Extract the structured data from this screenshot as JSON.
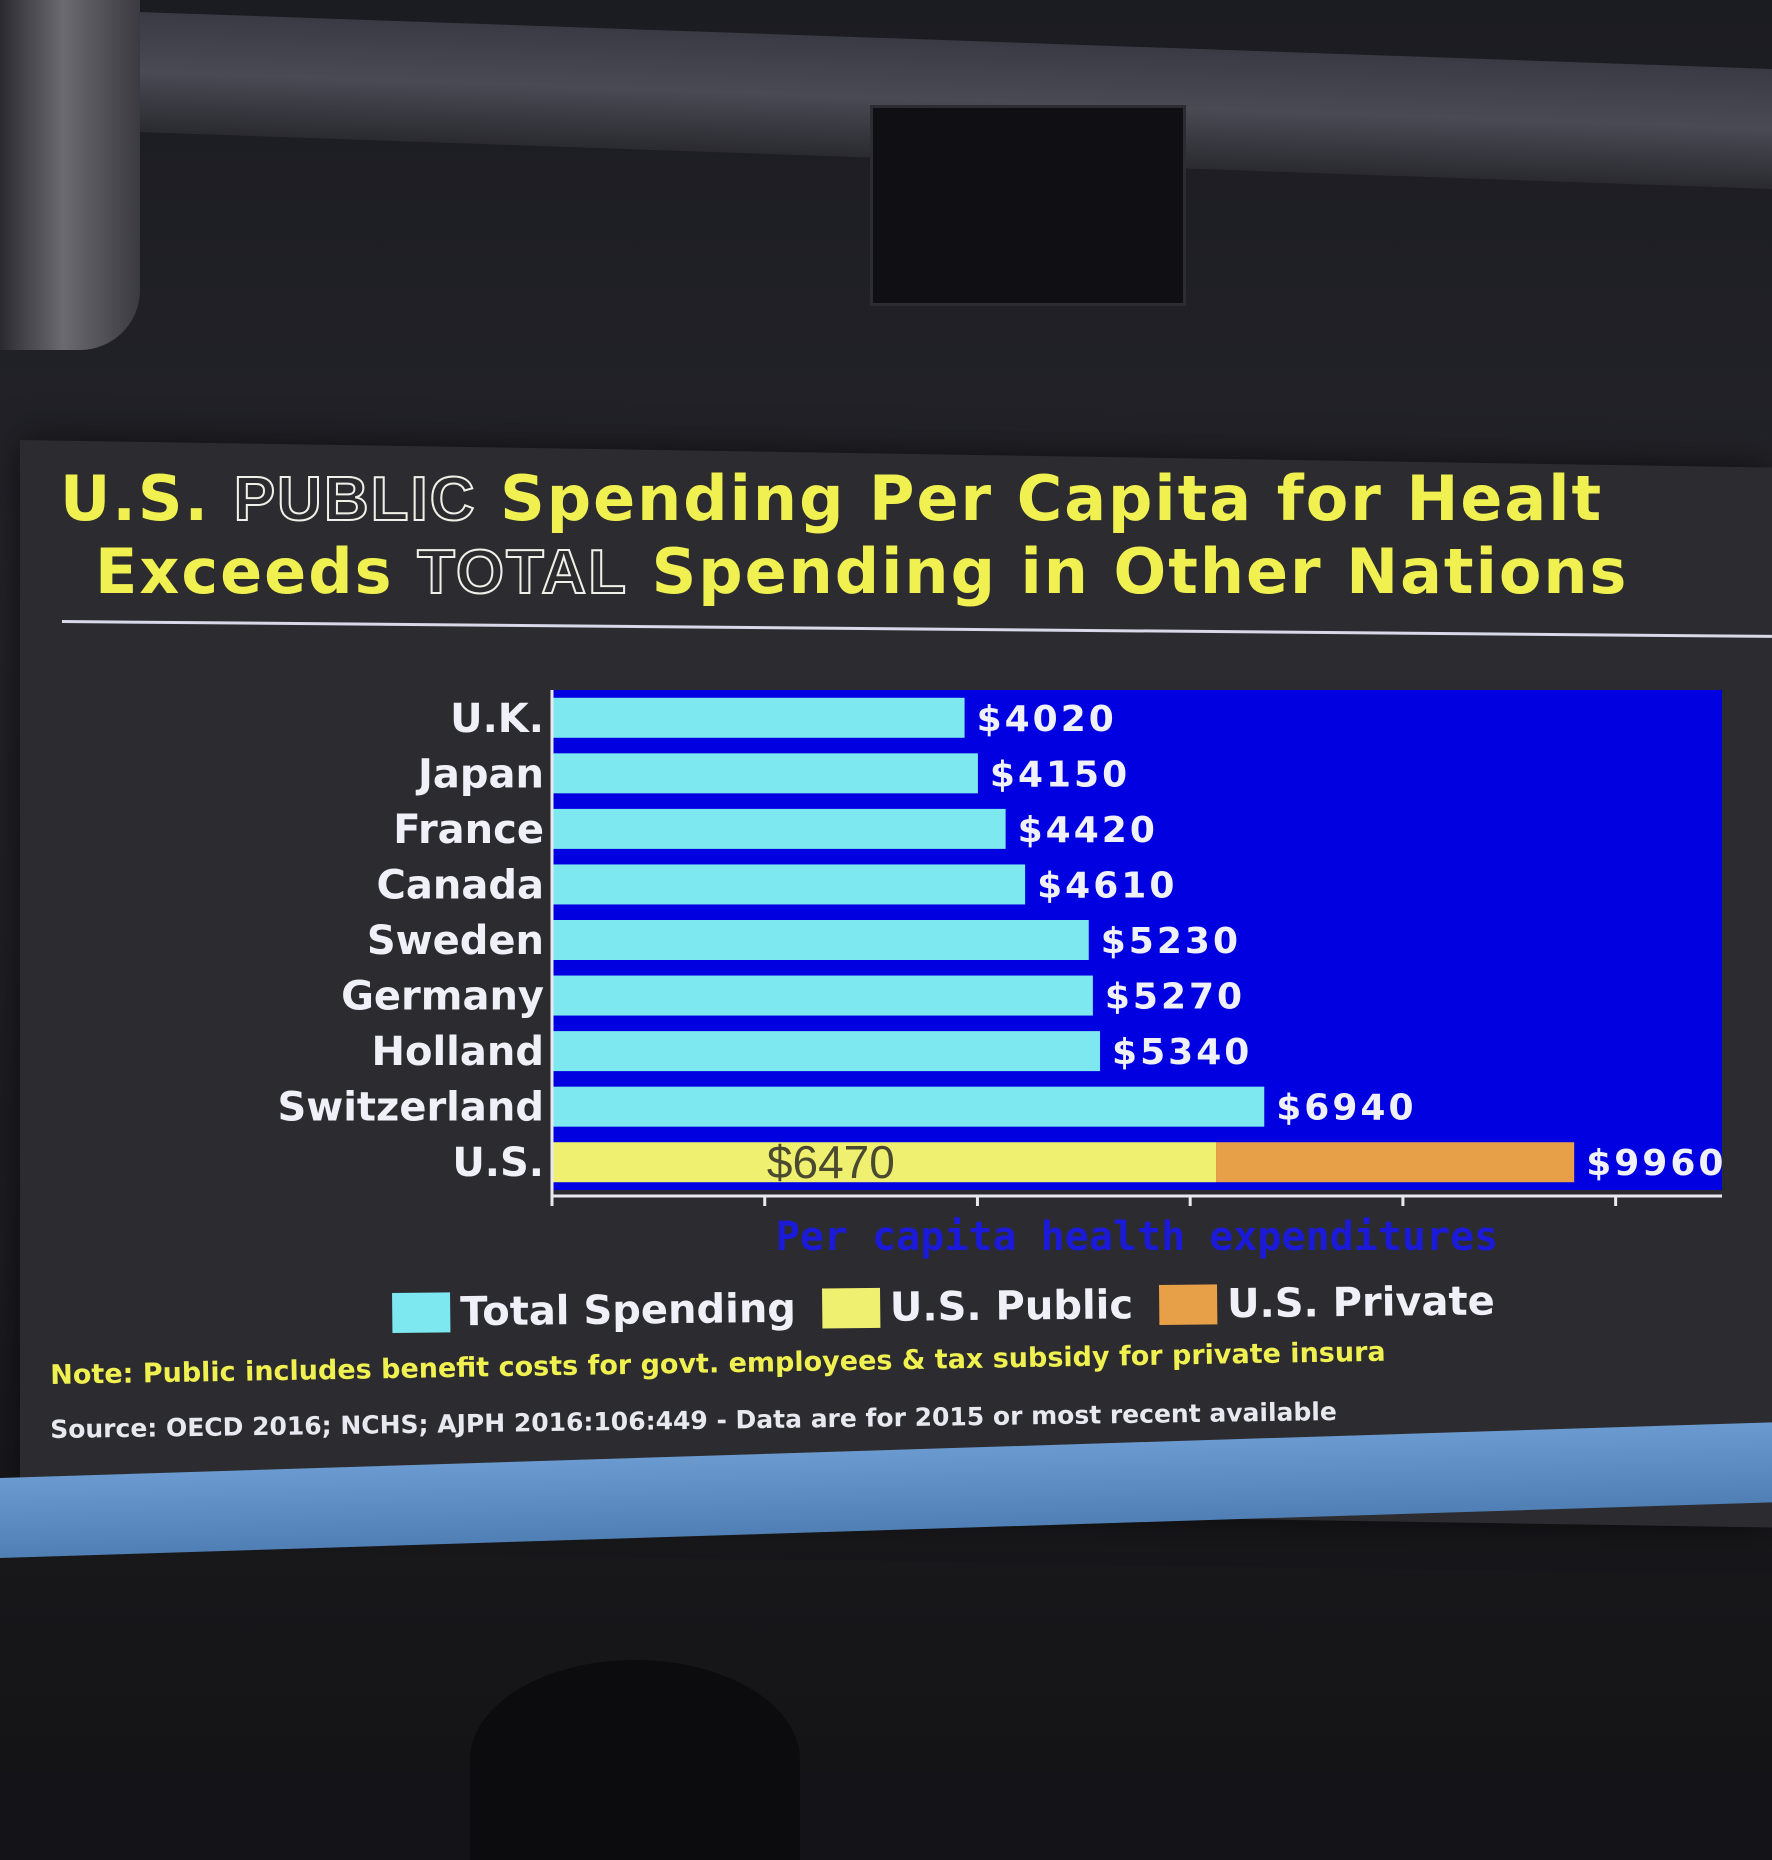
{
  "title": {
    "line1_part1": "U.S.",
    "line1_part2": "PUBLIC",
    "line1_part3": "Spending Per Capita for Healt",
    "line2_part1": "Exceeds",
    "line2_part2": "TOTAL",
    "line2_part3": "Spending in Other Nations"
  },
  "legend": {
    "total": "Total Spending",
    "public": "U.S. Public",
    "private": "U.S. Private"
  },
  "footnotes": {
    "note": "Note: Public includes benefit costs for govt. employees & tax subsidy for private insura",
    "source": "Source: OECD 2016; NCHS; AJPH 2016:106:449   - Data are for 2015 or most recent available"
  },
  "colors": {
    "plot_bg": "#0000e0",
    "total": "#7de8f0",
    "public": "#f0f070",
    "private": "#e8a048",
    "title": "#f0f050"
  },
  "chart_data": {
    "type": "bar",
    "orientation": "horizontal",
    "stacked_for": "U.S.",
    "xlabel": "Per capita health expenditures",
    "categories": [
      "U.K.",
      "Japan",
      "France",
      "Canada",
      "Sweden",
      "Germany",
      "Holland",
      "Switzerland",
      "U.S."
    ],
    "series": [
      {
        "name": "Total Spending",
        "values": [
          4020,
          4150,
          4420,
          4610,
          5230,
          5270,
          5340,
          6940,
          null
        ]
      },
      {
        "name": "U.S. Public",
        "values": [
          null,
          null,
          null,
          null,
          null,
          null,
          null,
          null,
          6470
        ]
      },
      {
        "name": "U.S. Private",
        "values": [
          null,
          null,
          null,
          null,
          null,
          null,
          null,
          null,
          3490
        ]
      }
    ],
    "value_labels": [
      "$4020",
      "$4150",
      "$4420",
      "$4610",
      "$5230",
      "$5270",
      "$5340",
      "$6940",
      "$9960"
    ],
    "us_public_label": "$6470",
    "xlim": [
      0,
      11400
    ],
    "grid": false,
    "legend_position": "bottom"
  }
}
